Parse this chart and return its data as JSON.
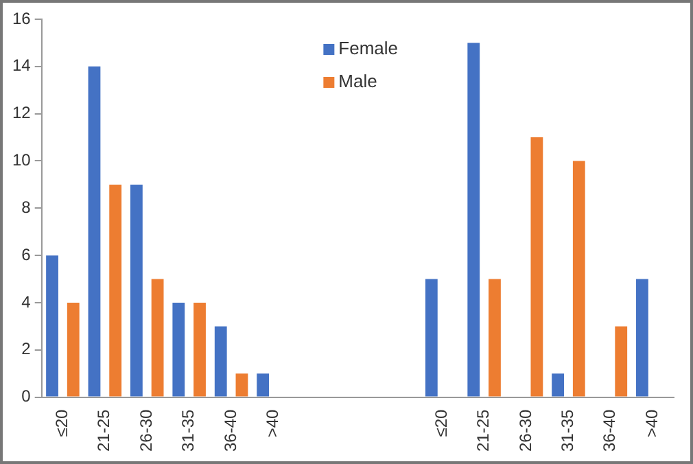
{
  "chart_data": {
    "type": "bar",
    "categories": [
      "≤20",
      "21-25",
      "26-30",
      "31-35",
      "36-40",
      ">40",
      null,
      null,
      null,
      "≤20",
      "21-25",
      "26-30",
      "31-35",
      "36-40",
      ">40"
    ],
    "series": [
      {
        "name": "Female",
        "color": "#4472c4",
        "values": [
          6,
          14,
          9,
          4,
          3,
          1,
          null,
          null,
          null,
          5,
          15,
          0,
          1,
          0,
          5
        ]
      },
      {
        "name": "Male",
        "color": "#ed7d31",
        "values": [
          4,
          9,
          5,
          4,
          1,
          0,
          null,
          null,
          null,
          0,
          5,
          11,
          10,
          3,
          0
        ]
      }
    ],
    "ylim": [
      0,
      16
    ],
    "yticks": [
      0,
      2,
      4,
      6,
      8,
      10,
      12,
      14,
      16
    ],
    "grid": false,
    "legend": "top"
  }
}
